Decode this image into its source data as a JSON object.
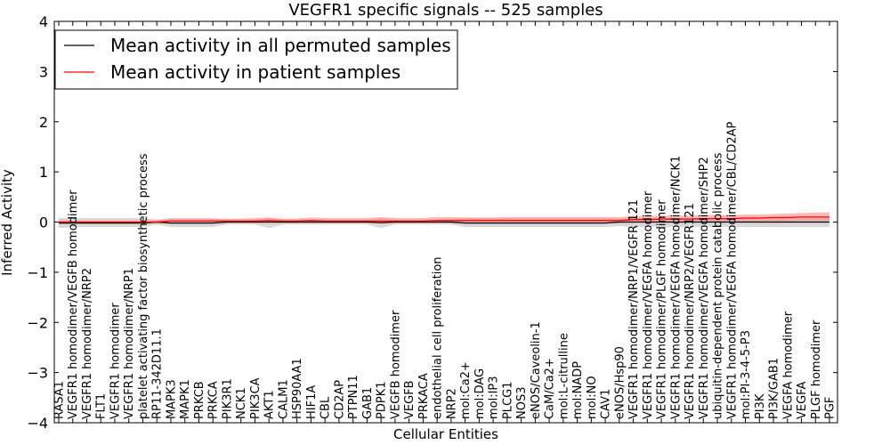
{
  "chart_data": {
    "type": "line",
    "title": "VEGFR1 specific signals -- 525 samples",
    "xlabel": "Cellular Entities",
    "ylabel": "Inferred Activity",
    "ylim": [
      -4,
      4
    ],
    "yticks": [
      "4",
      "3",
      "2",
      "1",
      "0",
      "−1",
      "−2",
      "−3",
      "−4"
    ],
    "grid": false,
    "legend_position": "top-left",
    "categories": [
      "RASA1",
      "VEGFR1 homodimer/VEGFB homodimer",
      "VEGFR1 homodimer/NRP2",
      "FLT1",
      "VEGFR1 homodimer",
      "VEGFR1 homodimer/NRP1",
      "platelet activating factor biosynthetic process",
      "RP11-342D11.1",
      "MAPK3",
      "MAPK1",
      "PRKCB",
      "PRKCA",
      "PIK3R1",
      "NCK1",
      "PIK3CA",
      "AKT1",
      "CALM1",
      "HSP90AA1",
      "HIF1A",
      "CBL",
      "CD2AP",
      "PTPN11",
      "GAB1",
      "PDPK1",
      "VEGFB homodimer",
      "VEGFB",
      "PRKACA",
      "endothelial cell proliferation",
      "NRP2",
      "mol:Ca2+",
      "mol:DAG",
      "mol:IP3",
      "PLCG1",
      "NOS3",
      "eNOS/Caveolin-1",
      "CaM/Ca2+",
      "mol:L-citrulline",
      "mol:NADP",
      "mol:NO",
      "CAV1",
      "eNOS/Hsp90",
      "VEGFR1 homodimer/NRP1/VEGFR 121",
      "VEGFR1 homodimer/VEGFA homodimer",
      "VEGFR1 homodimer/PLGF homodimer",
      "VEGFR1 homodimer/VEGFA homodimer/NCK1",
      "VEGFR1 homodimer/NRP2/VEGFR121",
      "VEGFR1 homodimer/VEGFA homodimer/SHP2",
      "ubiquitin-dependent protein catabolic process",
      "VEGFR1 homodimer/VEGFA homodimer/CBL/CD2AP",
      "mol:PI-3-4-5-P3",
      "PI3K",
      "PI3K/GAB1",
      "VEGFA homodimer",
      "VEGFA",
      "PLGF homodimer",
      "PGF"
    ],
    "series": [
      {
        "name": "Mean activity in all permuted samples",
        "color": "#000000",
        "values": [
          -0.02,
          -0.02,
          -0.02,
          -0.02,
          -0.02,
          -0.02,
          -0.02,
          0.0,
          -0.02,
          -0.02,
          -0.02,
          -0.02,
          0.0,
          0.0,
          0.0,
          0.0,
          0.0,
          0.0,
          0.0,
          0.0,
          0.0,
          0.0,
          0.0,
          -0.01,
          0.0,
          0.0,
          0.0,
          0.0,
          0.0,
          -0.02,
          -0.02,
          -0.02,
          -0.02,
          -0.02,
          -0.02,
          -0.02,
          -0.02,
          -0.02,
          -0.02,
          -0.02,
          0.0,
          0.0,
          0.0,
          0.0,
          0.0,
          0.0,
          0.0,
          0.0,
          0.0,
          0.0,
          0.0,
          0.0,
          0.0,
          0.0,
          0.0,
          0.0
        ],
        "band_low": [
          -0.12,
          -0.1,
          -0.1,
          -0.1,
          -0.1,
          -0.1,
          -0.1,
          -0.05,
          -0.1,
          -0.1,
          -0.1,
          -0.1,
          -0.05,
          -0.05,
          -0.05,
          -0.12,
          -0.05,
          -0.05,
          -0.05,
          -0.05,
          -0.05,
          -0.05,
          -0.05,
          -0.12,
          -0.05,
          -0.05,
          -0.05,
          -0.05,
          -0.05,
          -0.1,
          -0.1,
          -0.1,
          -0.1,
          -0.1,
          -0.1,
          -0.1,
          -0.1,
          -0.1,
          -0.1,
          -0.1,
          -0.08,
          -0.1,
          -0.1,
          -0.1,
          -0.1,
          -0.1,
          -0.1,
          -0.1,
          -0.1,
          -0.1,
          -0.1,
          -0.1,
          -0.1,
          -0.1,
          -0.1,
          -0.1
        ],
        "band_high": [
          0.08,
          0.08,
          0.08,
          0.08,
          0.08,
          0.08,
          0.08,
          0.05,
          0.08,
          0.08,
          0.08,
          0.08,
          0.05,
          0.05,
          0.05,
          0.08,
          0.05,
          0.05,
          0.05,
          0.05,
          0.05,
          0.05,
          0.05,
          0.08,
          0.05,
          0.05,
          0.05,
          0.05,
          0.05,
          0.08,
          0.08,
          0.08,
          0.08,
          0.08,
          0.08,
          0.08,
          0.08,
          0.08,
          0.08,
          0.08,
          0.06,
          0.08,
          0.08,
          0.08,
          0.08,
          0.08,
          0.08,
          0.08,
          0.08,
          0.08,
          0.08,
          0.08,
          0.08,
          0.08,
          0.08,
          0.08
        ],
        "band_color": "#cccccc"
      },
      {
        "name": "Mean activity in patient samples",
        "color": "#ff0000",
        "values": [
          0.0,
          0.0,
          0.0,
          0.0,
          0.0,
          0.0,
          0.0,
          0.0,
          0.02,
          0.02,
          0.02,
          0.02,
          0.02,
          0.02,
          0.02,
          0.03,
          0.02,
          0.02,
          0.03,
          0.02,
          0.02,
          0.02,
          0.02,
          0.02,
          0.02,
          0.02,
          0.02,
          0.03,
          0.03,
          0.03,
          0.03,
          0.03,
          0.03,
          0.03,
          0.03,
          0.03,
          0.03,
          0.03,
          0.03,
          0.03,
          0.03,
          0.05,
          0.05,
          0.06,
          0.06,
          0.06,
          0.07,
          0.07,
          0.07,
          0.08,
          0.08,
          0.09,
          0.09,
          0.1,
          0.1,
          0.1
        ],
        "band_low": [
          -0.04,
          -0.03,
          -0.03,
          -0.03,
          -0.03,
          -0.03,
          -0.03,
          -0.03,
          -0.02,
          -0.02,
          -0.02,
          -0.02,
          -0.02,
          -0.02,
          -0.02,
          -0.02,
          -0.02,
          -0.02,
          -0.02,
          -0.02,
          -0.02,
          -0.02,
          -0.02,
          -0.03,
          -0.02,
          -0.02,
          -0.02,
          -0.02,
          -0.02,
          -0.02,
          -0.02,
          -0.02,
          -0.02,
          -0.02,
          -0.02,
          -0.02,
          -0.02,
          -0.02,
          -0.02,
          -0.02,
          -0.02,
          -0.01,
          0.0,
          0.0,
          0.0,
          0.0,
          0.0,
          0.0,
          0.0,
          0.01,
          0.01,
          0.01,
          0.01,
          0.02,
          0.02,
          0.02
        ],
        "band_high": [
          0.04,
          0.03,
          0.03,
          0.03,
          0.03,
          0.03,
          0.03,
          0.04,
          0.07,
          0.07,
          0.07,
          0.07,
          0.07,
          0.07,
          0.08,
          0.09,
          0.07,
          0.07,
          0.09,
          0.08,
          0.08,
          0.08,
          0.08,
          0.1,
          0.08,
          0.08,
          0.08,
          0.1,
          0.1,
          0.09,
          0.09,
          0.09,
          0.1,
          0.1,
          0.1,
          0.1,
          0.1,
          0.1,
          0.1,
          0.1,
          0.1,
          0.12,
          0.12,
          0.13,
          0.13,
          0.13,
          0.14,
          0.14,
          0.14,
          0.15,
          0.15,
          0.16,
          0.17,
          0.18,
          0.19,
          0.19
        ],
        "band_color": "#ff8080"
      }
    ]
  }
}
